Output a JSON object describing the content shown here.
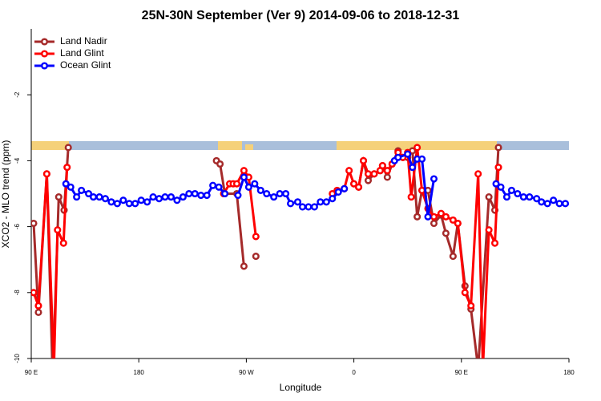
{
  "chart_data": {
    "type": "line",
    "title": "25N-30N September (Ver 9)   2014-09-06 to 2018-12-31",
    "x_label": "Longitude",
    "y_label": "XCO2 - MLO trend (ppm)",
    "xlim": [
      90,
      540
    ],
    "xticks": [
      {
        "value": 90,
        "label": "90 E"
      },
      {
        "value": 180,
        "label": "180"
      },
      {
        "value": 270,
        "label": "90 W"
      },
      {
        "value": 360,
        "label": "0"
      },
      {
        "value": 450,
        "label": "90 E"
      },
      {
        "value": 540,
        "label": "180"
      }
    ],
    "ylim": [
      -10,
      0
    ],
    "yticks": [
      -10,
      -8,
      -6,
      -4,
      -2
    ],
    "legend": "upper left",
    "series": [
      {
        "name": "Land Nadir",
        "color": "#a52a2a",
        "x": [
          92,
          96,
          103,
          108,
          113,
          117.5,
          121,
          null,
          245,
          248,
          252,
          262,
          268,
          null,
          278,
          null,
          360,
          364,
          368,
          372,
          377,
          382,
          384,
          388,
          392,
          397,
          401,
          405,
          409,
          413,
          417,
          422,
          427,
          433,
          437,
          443,
          447,
          453,
          458,
          464,
          473,
          478,
          481
        ],
        "values": [
          -5.9,
          -8.6,
          -4.4,
          -10.6,
          -5.1,
          -5.5,
          -3.6,
          null,
          -4.0,
          -4.1,
          -5.0,
          -5.0,
          -7.2,
          null,
          -6.9,
          null,
          -4.7,
          -4.8,
          -4.0,
          -4.6,
          -4.4,
          -4.3,
          -4.15,
          -4.5,
          -4.1,
          -3.7,
          -3.9,
          -3.9,
          -3.7,
          -5.7,
          -4.9,
          -4.9,
          -5.9,
          -5.65,
          -6.2,
          -6.9,
          -5.9,
          -7.8,
          -8.5,
          -10.3,
          -5.1,
          -5.5,
          -3.6
        ]
      },
      {
        "name": "Land Glint",
        "color": "#ff0000",
        "x": [
          92,
          96,
          103,
          109,
          112,
          117,
          120,
          null,
          251,
          256,
          259,
          262,
          268,
          272,
          278,
          null,
          342,
          346,
          352,
          356,
          360,
          364,
          368,
          372,
          377,
          382,
          384,
          388,
          392,
          397,
          401,
          405,
          408,
          413,
          417,
          422,
          427,
          433,
          437,
          443,
          447,
          453,
          458,
          464,
          468,
          473,
          478,
          481
        ],
        "values": [
          -8.0,
          -8.4,
          -4.4,
          -10.3,
          -6.1,
          -6.5,
          -4.2,
          null,
          -5.0,
          -4.7,
          -4.7,
          -4.7,
          -4.3,
          -4.5,
          -6.3,
          null,
          -5.0,
          -4.9,
          -4.85,
          -4.3,
          -4.7,
          -4.8,
          -4.0,
          -4.4,
          -4.4,
          -4.3,
          -4.15,
          -4.3,
          -4.1,
          -3.75,
          -3.9,
          -3.75,
          -5.1,
          -3.6,
          -4.9,
          -5.45,
          -5.7,
          -5.6,
          -5.7,
          -5.8,
          -5.9,
          -8.0,
          -8.4,
          -4.4,
          -10.3,
          -6.1,
          -6.5,
          -4.2
        ]
      },
      {
        "name": "Ocean Glint",
        "color": "#0000ff",
        "x": [
          119,
          123,
          128,
          132,
          138,
          142,
          147,
          152,
          157,
          162,
          167,
          172,
          177,
          182,
          187,
          192,
          197,
          202,
          207,
          212,
          217,
          222,
          227,
          232,
          237,
          242,
          247,
          252,
          null,
          263,
          268,
          272,
          277,
          282,
          287,
          293,
          298,
          303,
          307,
          313,
          317,
          322,
          327,
          332,
          337,
          342,
          347,
          352,
          null,
          394,
          397,
          405,
          409,
          413,
          417,
          422,
          427,
          null,
          479,
          483,
          488,
          492,
          497,
          502,
          507,
          513,
          517,
          522,
          527,
          532,
          537
        ],
        "values": [
          -4.7,
          -4.8,
          -5.1,
          -4.9,
          -5.0,
          -5.1,
          -5.1,
          -5.15,
          -5.25,
          -5.3,
          -5.2,
          -5.3,
          -5.3,
          -5.2,
          -5.25,
          -5.1,
          -5.15,
          -5.1,
          -5.1,
          -5.2,
          -5.1,
          -5.0,
          -5.0,
          -5.05,
          -5.05,
          -4.75,
          -4.8,
          -5.0,
          null,
          -5.05,
          -4.5,
          -4.8,
          -4.7,
          -4.9,
          -5.0,
          -5.1,
          -5.0,
          -5.0,
          -5.3,
          -5.25,
          -5.4,
          -5.4,
          -5.4,
          -5.25,
          -5.25,
          -5.15,
          -4.95,
          -4.85,
          null,
          -4.0,
          -3.9,
          -3.8,
          -4.2,
          -3.95,
          -3.95,
          -5.7,
          -4.55,
          null,
          -4.7,
          -4.8,
          -5.1,
          -4.9,
          -5.0,
          -5.1,
          -5.1,
          -5.15,
          -5.25,
          -5.3,
          -5.2,
          -5.3,
          -5.3
        ]
      }
    ]
  }
}
